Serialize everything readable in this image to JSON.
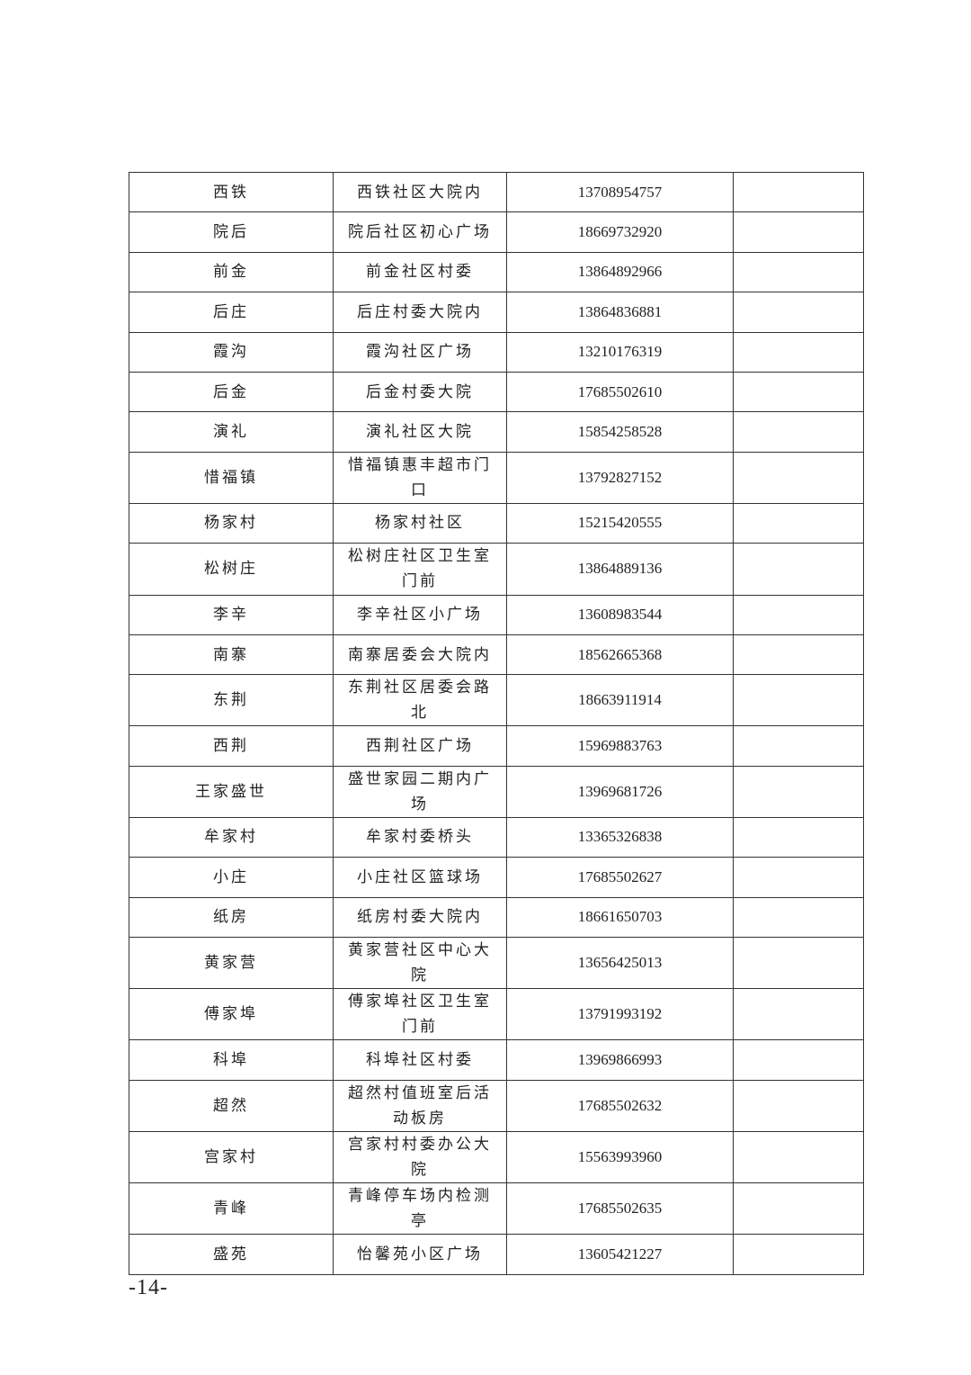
{
  "table": {
    "rows": [
      {
        "name": "西铁",
        "location": "西铁社区大院内",
        "phone": "13708954757",
        "note": ""
      },
      {
        "name": "院后",
        "location": "院后社区初心广场",
        "phone": "18669732920",
        "note": ""
      },
      {
        "name": "前金",
        "location": "前金社区村委",
        "phone": "13864892966",
        "note": ""
      },
      {
        "name": "后庄",
        "location": "后庄村委大院内",
        "phone": "13864836881",
        "note": ""
      },
      {
        "name": "霞沟",
        "location": "霞沟社区广场",
        "phone": "13210176319",
        "note": ""
      },
      {
        "name": "后金",
        "location": "后金村委大院",
        "phone": "17685502610",
        "note": ""
      },
      {
        "name": "演礼",
        "location": "演礼社区大院",
        "phone": "15854258528",
        "note": ""
      },
      {
        "name": "惜福镇",
        "location": "惜福镇惠丰超市门口",
        "phone": "13792827152",
        "note": ""
      },
      {
        "name": "杨家村",
        "location": "杨家村社区",
        "phone": "15215420555",
        "note": ""
      },
      {
        "name": "松树庄",
        "location": "松树庄社区卫生室门前",
        "phone": "13864889136",
        "note": ""
      },
      {
        "name": "李辛",
        "location": "李辛社区小广场",
        "phone": "13608983544",
        "note": ""
      },
      {
        "name": "南寨",
        "location": "南寨居委会大院内",
        "phone": "18562665368",
        "note": ""
      },
      {
        "name": "东荆",
        "location": "东荆社区居委会路北",
        "phone": "18663911914",
        "note": ""
      },
      {
        "name": "西荆",
        "location": "西荆社区广场",
        "phone": "15969883763",
        "note": ""
      },
      {
        "name": "王家盛世",
        "location": "盛世家园二期内广场",
        "phone": "13969681726",
        "note": ""
      },
      {
        "name": "牟家村",
        "location": "牟家村委桥头",
        "phone": "13365326838",
        "note": ""
      },
      {
        "name": "小庄",
        "location": "小庄社区篮球场",
        "phone": "17685502627",
        "note": ""
      },
      {
        "name": "纸房",
        "location": "纸房村委大院内",
        "phone": "18661650703",
        "note": ""
      },
      {
        "name": "黄家营",
        "location": "黄家营社区中心大院",
        "phone": "13656425013",
        "note": ""
      },
      {
        "name": "傅家埠",
        "location": "傅家埠社区卫生室门前",
        "phone": "13791993192",
        "note": ""
      },
      {
        "name": "科埠",
        "location": "科埠社区村委",
        "phone": "13969866993",
        "note": ""
      },
      {
        "name": "超然",
        "location": "超然村值班室后活动板房",
        "phone": "17685502632",
        "note": ""
      },
      {
        "name": "宫家村",
        "location": "宫家村村委办公大院",
        "phone": "15563993960",
        "note": ""
      },
      {
        "name": "青峰",
        "location": "青峰停车场内检测亭",
        "phone": "17685502635",
        "note": ""
      },
      {
        "name": "盛苑",
        "location": "怡馨苑小区广场",
        "phone": "13605421227",
        "note": ""
      }
    ]
  },
  "footer": {
    "page_number": "-14-"
  }
}
